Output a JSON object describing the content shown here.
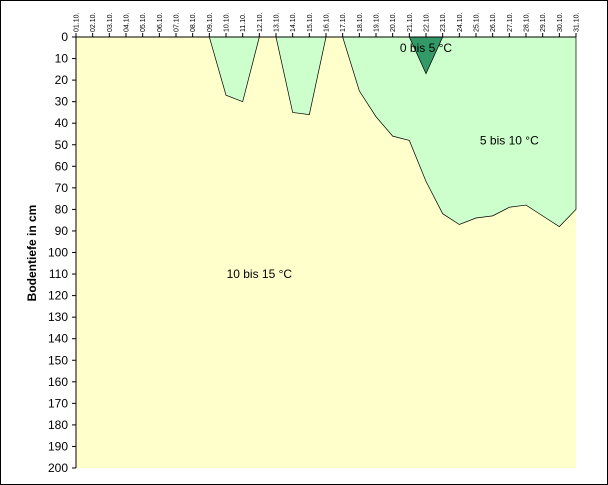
{
  "chart_data": {
    "type": "area",
    "title": "",
    "xlabel": "",
    "ylabel": "Bodentiefe in cm",
    "ylim": [
      0,
      200
    ],
    "y_inverted": true,
    "y_ticks": [
      0,
      10,
      20,
      30,
      40,
      50,
      60,
      70,
      80,
      90,
      100,
      110,
      120,
      130,
      140,
      150,
      160,
      170,
      180,
      190,
      200
    ],
    "categories": [
      "01.10.",
      "02.10.",
      "03.10.",
      "04.10.",
      "05.10.",
      "06.10.",
      "07.10.",
      "08.10.",
      "09.10.",
      "10.10.",
      "11.10.",
      "12.10.",
      "13.10.",
      "14.10.",
      "15.10.",
      "16.10.",
      "17.10.",
      "18.10.",
      "19.10.",
      "20.10.",
      "21.10.",
      "22.10.",
      "23.10.",
      "24.10.",
      "25.10.",
      "26.10.",
      "27.10.",
      "28.10.",
      "29.10.",
      "30.10.",
      "31.10."
    ],
    "grid": false,
    "legend": "none",
    "series": [
      {
        "name": "10 bis 15 °C",
        "color": "#ffffcc",
        "values": [
          200,
          200,
          200,
          200,
          200,
          200,
          200,
          200,
          200,
          200,
          200,
          200,
          200,
          200,
          200,
          200,
          200,
          200,
          200,
          200,
          200,
          200,
          200,
          200,
          200,
          200,
          200,
          200,
          200,
          200,
          200
        ]
      },
      {
        "name": "5 bis 10 °C",
        "color": "#ccffcc",
        "values": [
          0,
          0,
          0,
          0,
          0,
          0,
          0,
          0,
          0,
          27,
          30,
          0,
          0,
          35,
          36,
          0,
          0,
          25,
          37,
          46,
          48,
          67,
          82,
          87,
          84,
          83,
          79,
          78,
          83,
          88,
          80
        ]
      },
      {
        "name": "0 bis 5 °C",
        "color": "#339966",
        "values": [
          0,
          0,
          0,
          0,
          0,
          0,
          0,
          0,
          0,
          0,
          0,
          0,
          0,
          0,
          0,
          0,
          0,
          0,
          0,
          0,
          0,
          17,
          0,
          0,
          0,
          0,
          0,
          0,
          0,
          0,
          0
        ]
      }
    ],
    "annotations": [
      {
        "text": "0 bis 5 °C",
        "x": "22.10.",
        "y": 5
      },
      {
        "text": "5 bis 10 °C",
        "x": "27.10.",
        "y": 48
      },
      {
        "text": "10 bis 15 °C",
        "x": "12.10.",
        "y": 110
      }
    ]
  }
}
